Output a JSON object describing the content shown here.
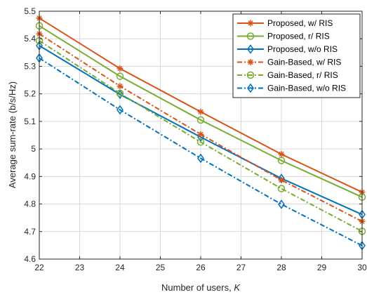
{
  "chart_data": {
    "type": "line",
    "title": "",
    "xlabel": "Number of users, ",
    "xlabel_var": "K",
    "ylabel": "Average sum-rate (b/s/Hz)",
    "x": [
      22,
      24,
      26,
      28,
      30
    ],
    "xlim": [
      22,
      30
    ],
    "ylim": [
      4.6,
      5.5
    ],
    "xticks": [
      "22",
      "23",
      "24",
      "25",
      "26",
      "27",
      "28",
      "29",
      "30"
    ],
    "yticks": [
      "4.6",
      "4.7",
      "4.8",
      "4.9",
      "5",
      "5.1",
      "5.2",
      "5.3",
      "5.4",
      "5.5"
    ],
    "grid": true,
    "legend_position": "top-right",
    "series": [
      {
        "name": "Proposed, w/ RIS",
        "values": [
          5.475,
          5.292,
          5.135,
          4.981,
          4.843
        ],
        "color": "#D95319",
        "dash": "solid",
        "marker": "asterisk"
      },
      {
        "name": "Proposed, r/ RIS",
        "values": [
          5.447,
          5.264,
          5.105,
          4.958,
          4.825
        ],
        "color": "#77AC30",
        "dash": "solid",
        "marker": "circle"
      },
      {
        "name": "Proposed, w/o RIS",
        "values": [
          5.375,
          5.198,
          5.043,
          4.893,
          4.762
        ],
        "color": "#0072BD",
        "dash": "solid",
        "marker": "diamond"
      },
      {
        "name": "Gain-Based, w/ RIS",
        "values": [
          5.418,
          5.228,
          5.053,
          4.887,
          4.737
        ],
        "color": "#D95319",
        "dash": "dashdot",
        "marker": "asterisk"
      },
      {
        "name": "Gain-Based, r/ RIS",
        "values": [
          5.393,
          5.202,
          5.025,
          4.856,
          4.701
        ],
        "color": "#77AC30",
        "dash": "dashdot",
        "marker": "circle"
      },
      {
        "name": "Gain-Based, w/o RIS",
        "values": [
          5.33,
          5.142,
          4.966,
          4.799,
          4.649
        ],
        "color": "#0072BD",
        "dash": "dashdot",
        "marker": "diamond"
      }
    ]
  }
}
